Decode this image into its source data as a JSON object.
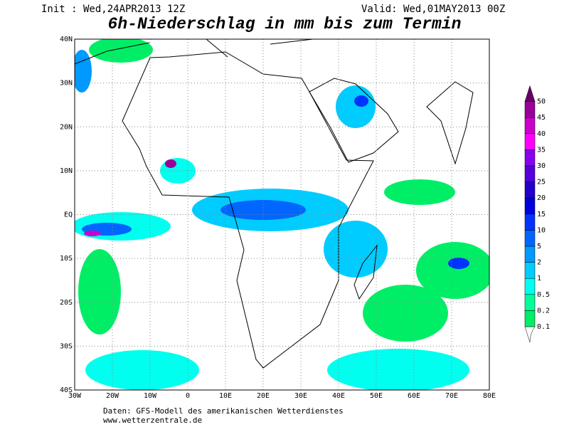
{
  "header": {
    "init": "Init : Wed,24APR2013 12Z",
    "valid": "Valid: Wed,01MAY2013 00Z",
    "title": "6h-Niederschlag in mm bis zum Termin"
  },
  "map": {
    "lat_labels": [
      "40N",
      "30N",
      "20N",
      "10N",
      "EQ",
      "10S",
      "20S",
      "30S",
      "40S"
    ],
    "lon_labels": [
      "30W",
      "20W",
      "10W",
      "0",
      "10E",
      "20E",
      "30E",
      "40E",
      "50E",
      "60E",
      "70E",
      "80E"
    ]
  },
  "colorbar": {
    "labels": [
      "0.1",
      "0.2",
      "0.5",
      "1",
      "2",
      "5",
      "10",
      "15",
      "20",
      "25",
      "30",
      "35",
      "40",
      "45",
      "50"
    ],
    "colors": [
      "#00ee66",
      "#00ff99",
      "#00ffee",
      "#00ccff",
      "#0099ff",
      "#0066ff",
      "#0033ff",
      "#0000dd",
      "#2200cc",
      "#5500dd",
      "#8800ee",
      "#ff00ff",
      "#cc00cc",
      "#990099",
      "#660066"
    ]
  },
  "footer": {
    "source": "Daten: GFS-Modell des amerikanischen Wetterdienstes",
    "site": "www.wetterzentrale.de"
  }
}
